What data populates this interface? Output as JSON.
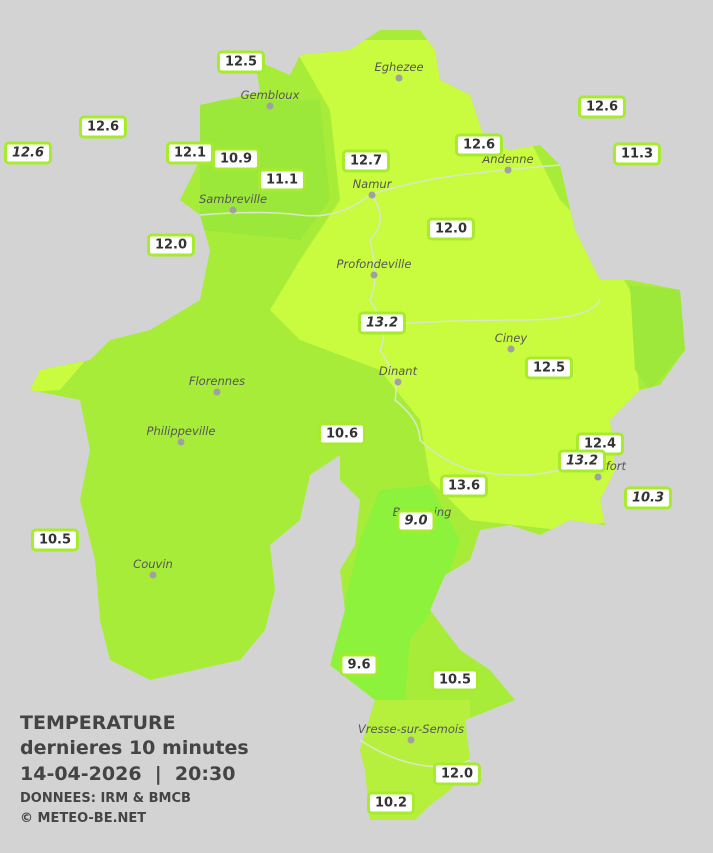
{
  "legend": {
    "title": "TEMPERATURE",
    "subtitle": "dernieres 10 minutes",
    "timestamp": "14-04-2026  |  20:30",
    "source": "DONNEES: IRM & BMCB",
    "copyright": "© METEO-BE.NET"
  },
  "cities": [
    "Eghezee",
    "Gembloux",
    "Andenne",
    "Namur",
    "Sambreville",
    "Profondeville",
    "Ciney",
    "Dinant",
    "Florennes",
    "Philippeville",
    "Rochefort",
    "Beauraing",
    "Couvin",
    "Vresse-sur-Semois"
  ],
  "stations": [
    {
      "label": "12.5",
      "italic": false
    },
    {
      "label": "12.6",
      "italic": false
    },
    {
      "label": "12.6",
      "italic": true
    },
    {
      "label": "12.1",
      "italic": false
    },
    {
      "label": "10.9",
      "italic": false
    },
    {
      "label": "11.1",
      "italic": false
    },
    {
      "label": "12.7",
      "italic": false
    },
    {
      "label": "12.6",
      "italic": false
    },
    {
      "label": "12.6",
      "italic": false
    },
    {
      "label": "11.3",
      "italic": false
    },
    {
      "label": "12.0",
      "italic": false
    },
    {
      "label": "12.0",
      "italic": false
    },
    {
      "label": "13.2",
      "italic": true
    },
    {
      "label": "12.5",
      "italic": false
    },
    {
      "label": "10.6",
      "italic": false
    },
    {
      "label": "12.4",
      "italic": false
    },
    {
      "label": "13.2",
      "italic": true
    },
    {
      "label": "10.3",
      "italic": true
    },
    {
      "label": "13.6",
      "italic": false
    },
    {
      "label": "9.0",
      "italic": true
    },
    {
      "label": "10.5",
      "italic": false
    },
    {
      "label": "9.6",
      "italic": false
    },
    {
      "label": "10.5",
      "italic": false
    },
    {
      "label": "12.0",
      "italic": false
    },
    {
      "label": "10.2",
      "italic": false
    }
  ]
}
